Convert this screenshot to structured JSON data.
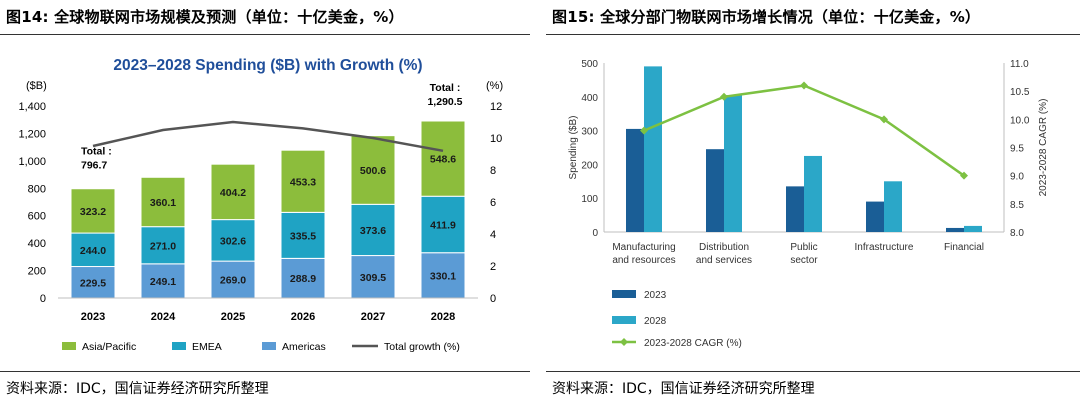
{
  "left": {
    "figure_title": "图14: 全球物联网市场规模及预测（单位：十亿美金，%）",
    "source": "资料来源：IDC，国信证券经济研究所整理"
  },
  "right": {
    "figure_title": "图15: 全球分部门物联网市场增长情况（单位：十亿美金，%）",
    "source": "资料来源：IDC，国信证券经济研究所整理"
  },
  "chart_data": [
    {
      "type": "bar",
      "stacked": true,
      "title": "2023–2028 Spending ($B) with Growth (%)",
      "ylabel": "($B)",
      "y2label": "(%)",
      "ylim": [
        0,
        1400
      ],
      "y2lim": [
        0,
        12
      ],
      "yticks": [
        0,
        200,
        400,
        600,
        800,
        1000,
        1200,
        1400
      ],
      "yticklabels": [
        "0",
        "200",
        "400",
        "600",
        "800",
        "1,000",
        "1,200",
        "1,400"
      ],
      "y2ticks": [
        0,
        2,
        4,
        6,
        8,
        10,
        12
      ],
      "categories": [
        "2023",
        "2024",
        "2025",
        "2026",
        "2027",
        "2028"
      ],
      "series": [
        {
          "name": "Americas",
          "color": "#5b9bd5",
          "values": [
            229.5,
            249.1,
            269.0,
            288.9,
            309.5,
            330.1
          ],
          "labels": [
            "229.5",
            "249.1",
            "269.0",
            "288.9",
            "309.5",
            "330.1"
          ]
        },
        {
          "name": "EMEA",
          "color": "#1fa3c4",
          "values": [
            244.0,
            271.0,
            302.6,
            335.5,
            373.6,
            411.9
          ],
          "labels": [
            "244.0",
            "271.0",
            "302.6",
            "335.5",
            "373.6",
            "411.9"
          ]
        },
        {
          "name": "Asia/Pacific",
          "color": "#8cbd3c",
          "values": [
            323.2,
            360.1,
            404.2,
            453.3,
            500.6,
            548.6
          ],
          "labels": [
            "323.2",
            "360.1",
            "404.2",
            "453.3",
            "500.6",
            "548.6"
          ]
        }
      ],
      "line": {
        "name": "Total growth (%)",
        "color": "#555555",
        "axis": "right",
        "values": [
          9.5,
          10.5,
          11.0,
          10.6,
          10.0,
          9.2
        ]
      },
      "annotations": [
        {
          "category": "2023",
          "label": "Total :",
          "value": "796.7"
        },
        {
          "category": "2028",
          "label": "Total :",
          "value": "1,290.5"
        }
      ],
      "legend": {
        "position": "bottom",
        "order": [
          "Asia/Pacific",
          "EMEA",
          "Americas",
          "Total growth (%)"
        ]
      },
      "grid": false
    },
    {
      "type": "bar",
      "ylabel": "Spending ($B)",
      "y2label": "2023-2028 CAGR (%)",
      "ylim": [
        0,
        500
      ],
      "y2lim": [
        8.0,
        11.0
      ],
      "yticks": [
        0,
        100,
        200,
        300,
        400,
        500
      ],
      "y2ticks": [
        "8.0",
        "8.5",
        "9.0",
        "9.5",
        "10.0",
        "10.5",
        "11.0"
      ],
      "categories": [
        [
          "Manufacturing",
          "and resources"
        ],
        [
          "Distribution",
          "and services"
        ],
        [
          "Public",
          "sector"
        ],
        [
          "Infrastructure"
        ],
        [
          "Financial"
        ]
      ],
      "series": [
        {
          "name": "2023",
          "color": "#1a5e96",
          "values": [
            305,
            245,
            135,
            90,
            12
          ]
        },
        {
          "name": "2028",
          "color": "#2ba7c8",
          "values": [
            490,
            405,
            225,
            150,
            18
          ]
        }
      ],
      "line": {
        "name": "2023-2028 CAGR (%)",
        "color": "#7dc142",
        "axis": "right",
        "values": [
          9.8,
          10.4,
          10.6,
          10.0,
          9.0
        ]
      },
      "legend": {
        "position": "bottom-left",
        "order": [
          "2023",
          "2028",
          "2023-2028 CAGR (%)"
        ]
      },
      "grid": false
    }
  ]
}
